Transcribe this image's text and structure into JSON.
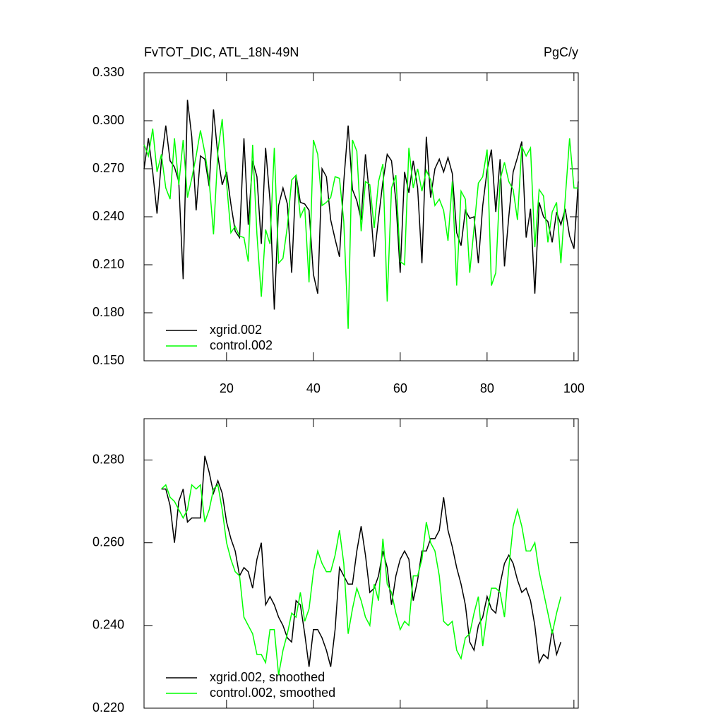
{
  "chart_data": [
    {
      "type": "line",
      "title": "FvTOT_DIC, ATL_18N-49N",
      "right_title": "PgC/y",
      "x": [
        1,
        2,
        3,
        4,
        5,
        6,
        7,
        8,
        9,
        10,
        11,
        12,
        13,
        14,
        15,
        16,
        17,
        18,
        19,
        20,
        21,
        22,
        23,
        24,
        25,
        26,
        27,
        28,
        29,
        30,
        31,
        32,
        33,
        34,
        35,
        36,
        37,
        38,
        39,
        40,
        41,
        42,
        43,
        44,
        45,
        46,
        47,
        48,
        49,
        50,
        51,
        52,
        53,
        54,
        55,
        56,
        57,
        58,
        59,
        60,
        61,
        62,
        63,
        64,
        65,
        66,
        67,
        68,
        69,
        70,
        71,
        72,
        73,
        74,
        75,
        76,
        77,
        78,
        79,
        80,
        81,
        82,
        83,
        84,
        85,
        86,
        87,
        88,
        89,
        90,
        91,
        92,
        93,
        94,
        95,
        96,
        97,
        98,
        99,
        100,
        101
      ],
      "series": [
        {
          "name": "xgrid.002",
          "color": "#000000",
          "values": [
            0.27,
            0.289,
            0.268,
            0.242,
            0.275,
            0.297,
            0.275,
            0.271,
            0.262,
            0.201,
            0.313,
            0.29,
            0.244,
            0.278,
            0.276,
            0.259,
            0.307,
            0.278,
            0.26,
            0.268,
            0.248,
            0.231,
            0.227,
            0.289,
            0.235,
            0.275,
            0.265,
            0.223,
            0.283,
            0.25,
            0.182,
            0.247,
            0.258,
            0.248,
            0.205,
            0.266,
            0.249,
            0.248,
            0.244,
            0.204,
            0.192,
            0.27,
            0.265,
            0.238,
            0.226,
            0.215,
            0.262,
            0.297,
            0.257,
            0.25,
            0.238,
            0.279,
            0.251,
            0.215,
            0.239,
            0.262,
            0.279,
            0.275,
            0.25,
            0.205,
            0.268,
            0.255,
            0.275,
            0.258,
            0.211,
            0.29,
            0.252,
            0.27,
            0.276,
            0.268,
            0.277,
            0.267,
            0.23,
            0.222,
            0.244,
            0.239,
            0.24,
            0.211,
            0.247,
            0.269,
            0.282,
            0.243,
            0.276,
            0.209,
            0.24,
            0.268,
            0.277,
            0.287,
            0.227,
            0.245,
            0.192,
            0.249,
            0.24,
            0.237,
            0.224,
            0.243,
            0.235,
            0.245,
            0.228,
            0.22,
            0.262
          ]
        },
        {
          "name": "control.002",
          "color": "#00ff00",
          "values": [
            0.285,
            0.278,
            0.295,
            0.268,
            0.279,
            0.258,
            0.251,
            0.289,
            0.26,
            0.288,
            0.252,
            0.264,
            0.278,
            0.294,
            0.28,
            0.262,
            0.229,
            0.281,
            0.301,
            0.261,
            0.23,
            0.234,
            0.228,
            0.227,
            0.212,
            0.285,
            0.229,
            0.19,
            0.232,
            0.223,
            0.283,
            0.211,
            0.214,
            0.234,
            0.263,
            0.266,
            0.24,
            0.246,
            0.199,
            0.288,
            0.279,
            0.247,
            0.249,
            0.252,
            0.265,
            0.264,
            0.237,
            0.17,
            0.288,
            0.281,
            0.231,
            0.262,
            0.26,
            0.233,
            0.262,
            0.273,
            0.187,
            0.258,
            0.266,
            0.212,
            0.21,
            0.283,
            0.258,
            0.27,
            0.256,
            0.269,
            0.263,
            0.247,
            0.251,
            0.244,
            0.225,
            0.262,
            0.197,
            0.256,
            0.251,
            0.205,
            0.233,
            0.261,
            0.265,
            0.282,
            0.197,
            0.205,
            0.263,
            0.274,
            0.262,
            0.257,
            0.238,
            0.284,
            0.278,
            0.283,
            0.221,
            0.257,
            0.253,
            0.224,
            0.243,
            0.249,
            0.211,
            0.251,
            0.289,
            0.258,
            0.258
          ]
        }
      ],
      "xlim": [
        1,
        101
      ],
      "xticks": [
        20,
        40,
        60,
        80,
        100
      ],
      "xtick_labels": true,
      "ylim": [
        0.15,
        0.33
      ],
      "yticks": [
        {
          "value": 0.15,
          "label": "0.150"
        },
        {
          "value": 0.18,
          "label": "0.180"
        },
        {
          "value": 0.21,
          "label": "0.210"
        },
        {
          "value": 0.24,
          "label": "0.240"
        },
        {
          "value": 0.27,
          "label": "0.270"
        },
        {
          "value": 0.3,
          "label": "0.300"
        },
        {
          "value": 0.33,
          "label": "0.330"
        }
      ],
      "legend": "lower left"
    },
    {
      "type": "line",
      "x": [
        5,
        6,
        7,
        8,
        9,
        10,
        11,
        12,
        13,
        14,
        15,
        16,
        17,
        18,
        19,
        20,
        21,
        22,
        23,
        24,
        25,
        26,
        27,
        28,
        29,
        30,
        31,
        32,
        33,
        34,
        35,
        36,
        37,
        38,
        39,
        40,
        41,
        42,
        43,
        44,
        45,
        46,
        47,
        48,
        49,
        50,
        51,
        52,
        53,
        54,
        55,
        56,
        57,
        58,
        59,
        60,
        61,
        62,
        63,
        64,
        65,
        66,
        67,
        68,
        69,
        70,
        71,
        72,
        73,
        74,
        75,
        76,
        77,
        78,
        79,
        80,
        81,
        82,
        83,
        84,
        85,
        86,
        87,
        88,
        89,
        90,
        91,
        92,
        93,
        94,
        95,
        96,
        97
      ],
      "series": [
        {
          "name": "xgrid.002, smoothed",
          "color": "#000000",
          "values": [
            0.273,
            0.273,
            0.269,
            0.26,
            0.27,
            0.273,
            0.265,
            0.266,
            0.266,
            0.266,
            0.281,
            0.277,
            0.272,
            0.275,
            0.272,
            0.265,
            0.261,
            0.258,
            0.252,
            0.254,
            0.253,
            0.249,
            0.256,
            0.26,
            0.245,
            0.247,
            0.245,
            0.242,
            0.24,
            0.237,
            0.236,
            0.246,
            0.245,
            0.238,
            0.23,
            0.239,
            0.239,
            0.237,
            0.234,
            0.23,
            0.239,
            0.254,
            0.252,
            0.25,
            0.25,
            0.258,
            0.264,
            0.257,
            0.248,
            0.249,
            0.252,
            0.258,
            0.254,
            0.245,
            0.252,
            0.256,
            0.258,
            0.256,
            0.246,
            0.251,
            0.258,
            0.258,
            0.261,
            0.261,
            0.263,
            0.271,
            0.263,
            0.259,
            0.254,
            0.25,
            0.245,
            0.236,
            0.234,
            0.24,
            0.242,
            0.247,
            0.244,
            0.243,
            0.25,
            0.255,
            0.257,
            0.255,
            0.251,
            0.248,
            0.249,
            0.246,
            0.24,
            0.231,
            0.233,
            0.232,
            0.239,
            0.233,
            0.236
          ]
        },
        {
          "name": "control.002, smoothed",
          "color": "#00ff00",
          "values": [
            0.273,
            0.274,
            0.271,
            0.27,
            0.268,
            0.266,
            0.268,
            0.274,
            0.273,
            0.274,
            0.265,
            0.268,
            0.273,
            0.274,
            0.268,
            0.26,
            0.256,
            0.253,
            0.252,
            0.242,
            0.24,
            0.238,
            0.233,
            0.233,
            0.231,
            0.239,
            0.239,
            0.228,
            0.234,
            0.238,
            0.243,
            0.242,
            0.248,
            0.241,
            0.244,
            0.253,
            0.258,
            0.255,
            0.253,
            0.253,
            0.257,
            0.263,
            0.255,
            0.238,
            0.244,
            0.249,
            0.246,
            0.242,
            0.24,
            0.25,
            0.246,
            0.261,
            0.25,
            0.248,
            0.243,
            0.239,
            0.241,
            0.24,
            0.252,
            0.252,
            0.256,
            0.265,
            0.26,
            0.258,
            0.252,
            0.241,
            0.24,
            0.241,
            0.234,
            0.232,
            0.237,
            0.238,
            0.243,
            0.247,
            0.235,
            0.243,
            0.249,
            0.249,
            0.248,
            0.242,
            0.254,
            0.264,
            0.268,
            0.264,
            0.258,
            0.258,
            0.26,
            0.253,
            0.248,
            0.243,
            0.238,
            0.243,
            0.247
          ]
        }
      ],
      "xlim": [
        1,
        101
      ],
      "xticks": [
        20,
        40,
        60,
        80,
        100
      ],
      "xtick_labels": false,
      "ylim": [
        0.22,
        0.29
      ],
      "yticks": [
        {
          "value": 0.22,
          "label": "0.220"
        },
        {
          "value": 0.24,
          "label": "0.240"
        },
        {
          "value": 0.26,
          "label": "0.260"
        },
        {
          "value": 0.28,
          "label": "0.280"
        }
      ],
      "legend": "lower left"
    }
  ]
}
